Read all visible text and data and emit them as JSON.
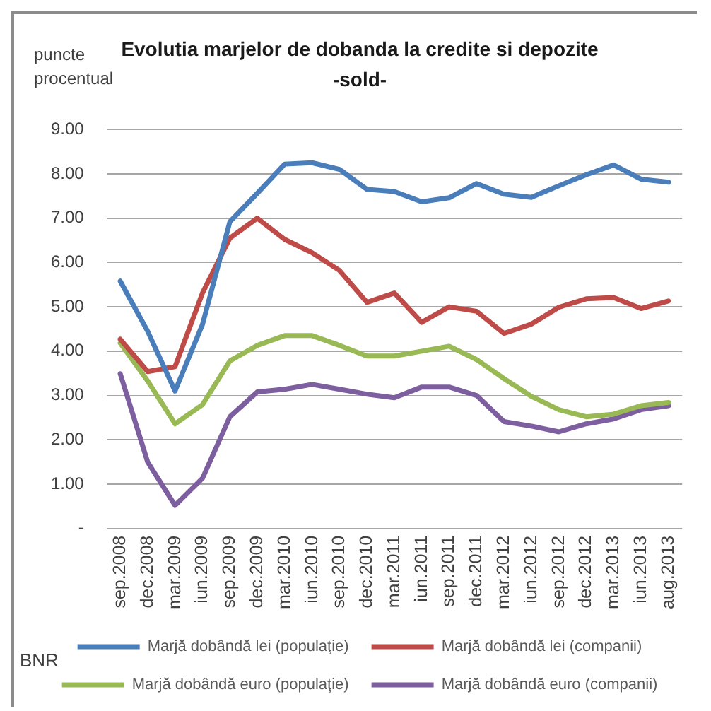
{
  "chart_data": {
    "type": "line",
    "title": "Evolutia marjelor de dobanda la credite si depozite",
    "subtitle": "-sold-",
    "ylabel": "puncte procentual",
    "annotations": [
      "BNR"
    ],
    "categories": [
      "sep.2008",
      "dec.2008",
      "mar.2009",
      "iun.2009",
      "sep.2009",
      "dec.2009",
      "mar.2010",
      "iun.2010",
      "sep.2010",
      "dec.2010",
      "mar.2011",
      "iun.2011",
      "sep.2011",
      "dec.2011",
      "mar.2012",
      "iun.2012",
      "sep.2012",
      "dec.2012",
      "mar.2013",
      "iun.2013",
      "aug.2013"
    ],
    "series": [
      {
        "name": "Marjă dobândă lei (populaţie)",
        "color": "#4a7ebb",
        "values": [
          5.58,
          4.45,
          3.1,
          4.6,
          6.92,
          7.56,
          8.22,
          8.25,
          8.1,
          7.65,
          7.6,
          7.37,
          7.46,
          7.78,
          7.54,
          7.47,
          7.73,
          7.98,
          8.2,
          7.88,
          7.81
        ]
      },
      {
        "name": "Marjă dobândă lei (companii)",
        "color": "#be4b48",
        "values": [
          4.27,
          3.54,
          3.65,
          5.31,
          6.55,
          7.0,
          6.52,
          6.22,
          5.82,
          5.1,
          5.31,
          4.65,
          5.0,
          4.9,
          4.4,
          4.61,
          4.99,
          5.18,
          5.21,
          4.96,
          5.13
        ]
      },
      {
        "name": "Marjă dobândă euro (populaţie)",
        "color": "#98b954",
        "values": [
          4.18,
          3.33,
          2.36,
          2.79,
          3.78,
          4.13,
          4.35,
          4.35,
          4.13,
          3.89,
          3.89,
          4.0,
          4.11,
          3.81,
          3.38,
          2.98,
          2.68,
          2.52,
          2.58,
          2.77,
          2.84
        ]
      },
      {
        "name": "Marjă dobândă euro (companii)",
        "color": "#7d5fa0",
        "values": [
          3.49,
          1.5,
          0.52,
          1.13,
          2.52,
          3.08,
          3.14,
          3.25,
          3.14,
          3.03,
          2.95,
          3.19,
          3.19,
          3.0,
          2.41,
          2.31,
          2.18,
          2.36,
          2.47,
          2.68,
          2.77
        ]
      }
    ],
    "ylim": [
      0,
      9
    ],
    "yticks": [
      {
        "value": 0,
        "label": "-"
      },
      {
        "value": 1,
        "label": "1.00"
      },
      {
        "value": 2,
        "label": "2.00"
      },
      {
        "value": 3,
        "label": "3.00"
      },
      {
        "value": 4,
        "label": "4.00"
      },
      {
        "value": 5,
        "label": "5.00"
      },
      {
        "value": 6,
        "label": "6.00"
      },
      {
        "value": 7,
        "label": "7.00"
      },
      {
        "value": 8,
        "label": "8.00"
      },
      {
        "value": 9,
        "label": "9.00"
      }
    ],
    "grid": "y",
    "legend": "bottom",
    "marker": "none",
    "line_style": "solid"
  }
}
